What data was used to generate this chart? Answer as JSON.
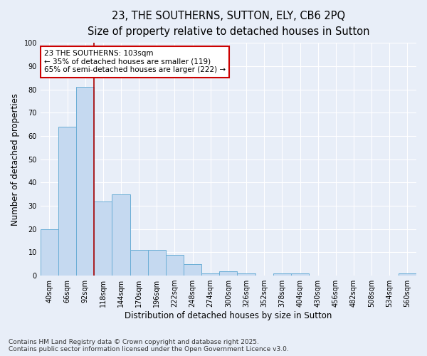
{
  "title_line1": "23, THE SOUTHERNS, SUTTON, ELY, CB6 2PQ",
  "title_line2": "Size of property relative to detached houses in Sutton",
  "xlabel": "Distribution of detached houses by size in Sutton",
  "ylabel": "Number of detached properties",
  "categories": [
    "40sqm",
    "66sqm",
    "92sqm",
    "118sqm",
    "144sqm",
    "170sqm",
    "196sqm",
    "222sqm",
    "248sqm",
    "274sqm",
    "300sqm",
    "326sqm",
    "352sqm",
    "378sqm",
    "404sqm",
    "430sqm",
    "456sqm",
    "482sqm",
    "508sqm",
    "534sqm",
    "560sqm"
  ],
  "values": [
    20,
    64,
    81,
    32,
    35,
    11,
    11,
    9,
    5,
    1,
    2,
    1,
    0,
    1,
    1,
    0,
    0,
    0,
    0,
    0,
    1
  ],
  "bar_color": "#c5d9f0",
  "bar_edge_color": "#6baed6",
  "annotation_line1": "23 THE SOUTHERNS: 103sqm",
  "annotation_line2": "← 35% of detached houses are smaller (119)",
  "annotation_line3": "65% of semi-detached houses are larger (222) →",
  "annotation_box_color": "#ffffff",
  "annotation_box_edge": "#cc0000",
  "vline_x_index": 2,
  "vline_color": "#aa0000",
  "ylim": [
    0,
    100
  ],
  "yticks": [
    0,
    10,
    20,
    30,
    40,
    50,
    60,
    70,
    80,
    90,
    100
  ],
  "bg_color": "#e8eef8",
  "plot_bg_color": "#e8eef8",
  "footer_line1": "Contains HM Land Registry data © Crown copyright and database right 2025.",
  "footer_line2": "Contains public sector information licensed under the Open Government Licence v3.0.",
  "title_fontsize": 10.5,
  "subtitle_fontsize": 9.5,
  "axis_label_fontsize": 8.5,
  "tick_fontsize": 7,
  "annotation_fontsize": 7.5,
  "footer_fontsize": 6.5
}
